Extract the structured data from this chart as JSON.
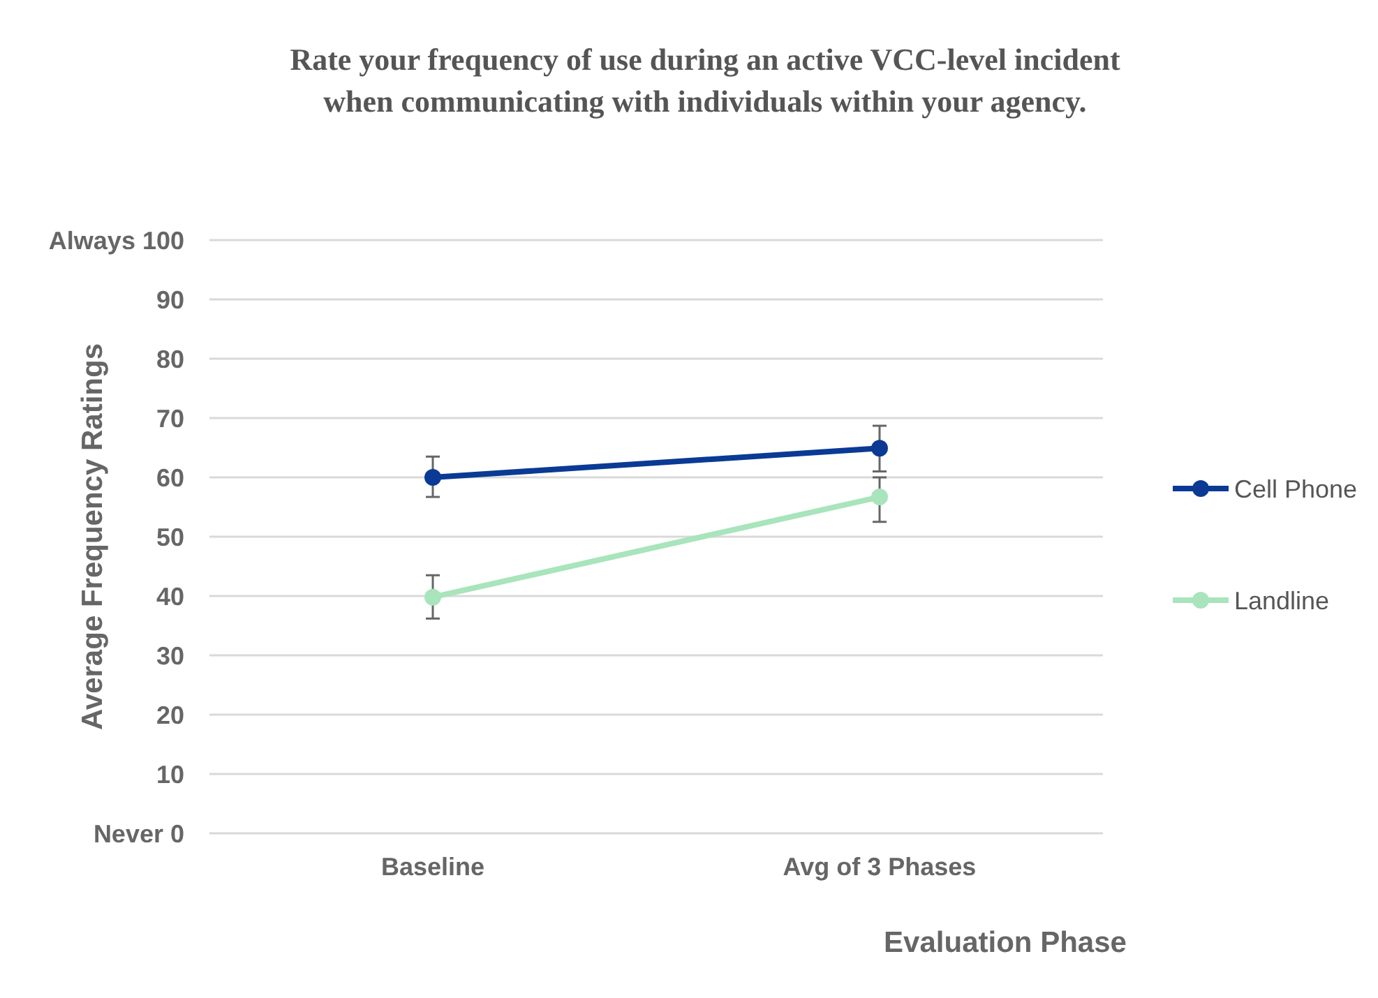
{
  "chart_data": {
    "type": "line",
    "title": "Rate your  frequency of use during an active VCC-level incident when communicating with individuals within your agency.",
    "xlabel": "Evaluation Phase",
    "ylabel": "Average Frequency  Ratings",
    "categories": [
      "Baseline",
      "Avg of 3 Phases"
    ],
    "series": [
      {
        "name": "Cell Phone",
        "color": "#0a3a94",
        "values": [
          60,
          64.9
        ],
        "errors": [
          [
            56.7,
            63.5
          ],
          [
            61,
            68.7
          ]
        ]
      },
      {
        "name": "Landline",
        "color": "#a8e4bc",
        "values": [
          39.8,
          56.7
        ],
        "errors": [
          [
            36.2,
            43.5
          ],
          [
            52.5,
            60
          ]
        ]
      }
    ],
    "ylim": [
      0,
      100
    ],
    "yticks": [
      {
        "value": 0,
        "label": "Never 0"
      },
      10,
      20,
      30,
      40,
      50,
      60,
      70,
      80,
      90,
      {
        "value": 100,
        "label": "Always 100"
      }
    ],
    "grid": "y",
    "legend": "right",
    "marker": "circle",
    "line_style": "solid"
  }
}
